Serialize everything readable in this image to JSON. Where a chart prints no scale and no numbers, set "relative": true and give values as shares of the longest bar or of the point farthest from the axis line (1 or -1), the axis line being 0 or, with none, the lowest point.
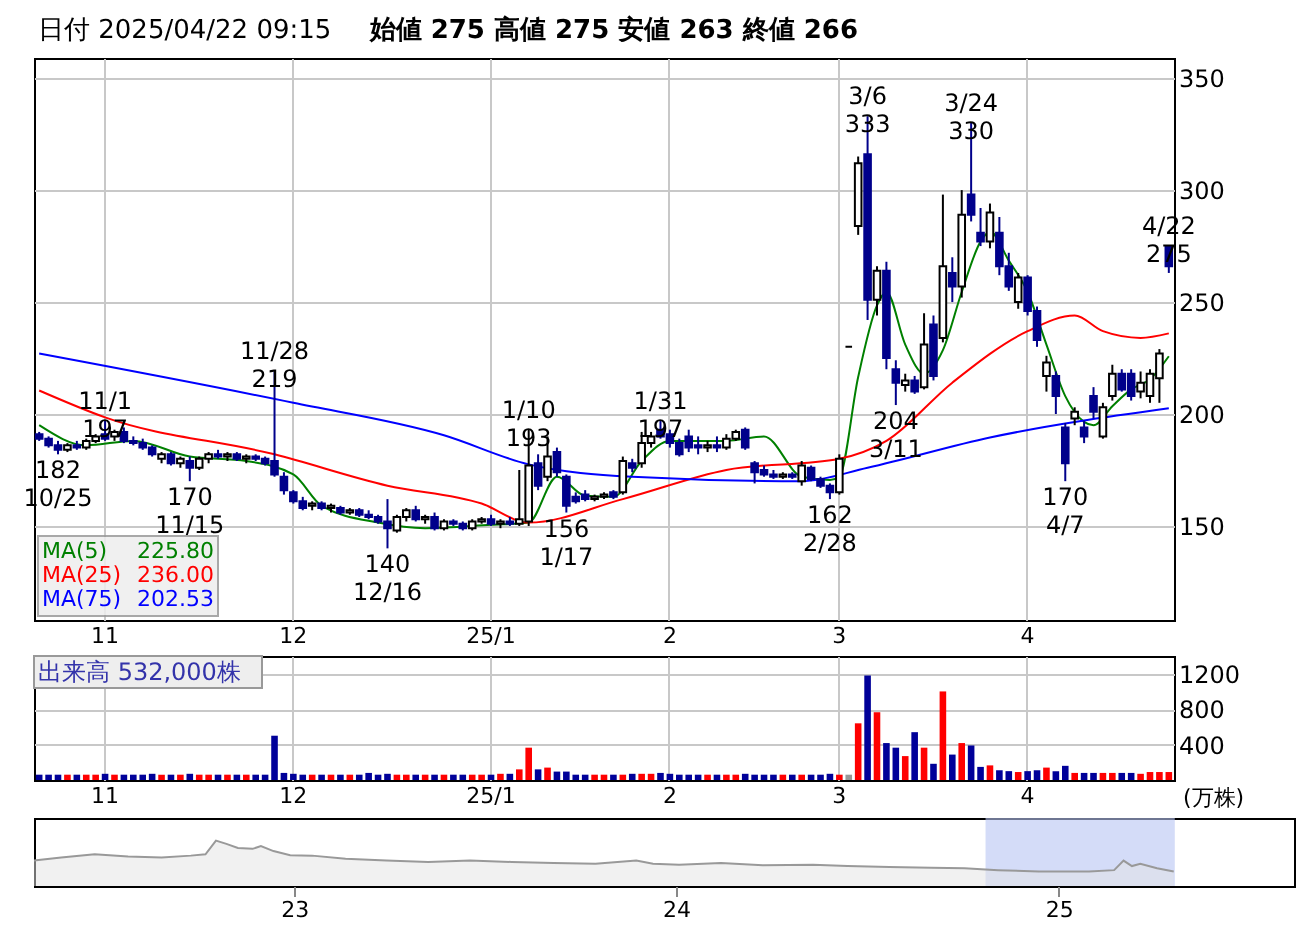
{
  "chart_data": [
    {
      "type": "candlestick",
      "title": "日付 2025/04/22 09:15",
      "subtitle": "始値 275  高値 275  安値 263  終値 266",
      "categories": [
        null,
        null,
        null,
        null,
        null,
        null,
        null,
        "11",
        null,
        null,
        null,
        null,
        null,
        null,
        null,
        null,
        null,
        null,
        null,
        null,
        null,
        null,
        null,
        null,
        null,
        null,
        null,
        "12",
        null,
        null,
        null,
        null,
        null,
        null,
        null,
        null,
        null,
        null,
        null,
        null,
        null,
        null,
        null,
        null,
        null,
        null,
        null,
        null,
        "25/1",
        null,
        null,
        null,
        null,
        null,
        null,
        null,
        null,
        null,
        null,
        null,
        null,
        null,
        null,
        null,
        null,
        null,
        null,
        "2",
        null,
        null,
        null,
        null,
        null,
        null,
        null,
        null,
        null,
        null,
        null,
        null,
        null,
        null,
        null,
        null,
        null,
        "3",
        null,
        null,
        null,
        null,
        null,
        null,
        null,
        null,
        null,
        null,
        null,
        null,
        null,
        null,
        null,
        null,
        null,
        null,
        null,
        "4",
        null,
        null,
        null,
        null,
        null,
        null,
        null,
        null,
        null,
        null,
        null,
        null,
        null,
        null,
        null
      ],
      "ohlc": [
        [
          191,
          192,
          188,
          189
        ],
        [
          189,
          190,
          185,
          186
        ],
        [
          186,
          188,
          182,
          184
        ],
        [
          184,
          187,
          183,
          186
        ],
        [
          186,
          188,
          184,
          185
        ],
        [
          185,
          189,
          184,
          188
        ],
        [
          188,
          191,
          187,
          190
        ],
        [
          191,
          197,
          188,
          189
        ],
        [
          190,
          193,
          188,
          192
        ],
        [
          192,
          194,
          187,
          188
        ],
        [
          188,
          190,
          186,
          187
        ],
        [
          187,
          189,
          184,
          185
        ],
        [
          185,
          186,
          181,
          182
        ],
        [
          180,
          183,
          178,
          182
        ],
        [
          182,
          183,
          177,
          178
        ],
        [
          178,
          181,
          176,
          180
        ],
        [
          179,
          181,
          170,
          176
        ],
        [
          176,
          181,
          175,
          180
        ],
        [
          180,
          183,
          178,
          182
        ],
        [
          182,
          184,
          180,
          181
        ],
        [
          181,
          183,
          179,
          182
        ],
        [
          182,
          183,
          179,
          180
        ],
        [
          180,
          182,
          178,
          181
        ],
        [
          181,
          182,
          179,
          180
        ],
        [
          180,
          181,
          177,
          178
        ],
        [
          179,
          219,
          172,
          173
        ],
        [
          172,
          174,
          164,
          166
        ],
        [
          165,
          166,
          160,
          161
        ],
        [
          161,
          163,
          157,
          158
        ],
        [
          159,
          161,
          157,
          160
        ],
        [
          160,
          161,
          157,
          158
        ],
        [
          158,
          160,
          156,
          159
        ],
        [
          158,
          159,
          155,
          156
        ],
        [
          156,
          158,
          155,
          157
        ],
        [
          157,
          158,
          154,
          155
        ],
        [
          155,
          157,
          153,
          154
        ],
        [
          154,
          155,
          151,
          152
        ],
        [
          152,
          162,
          140,
          149
        ],
        [
          148,
          155,
          147,
          154
        ],
        [
          154,
          158,
          152,
          157
        ],
        [
          157,
          159,
          152,
          153
        ],
        [
          153,
          155,
          151,
          154
        ],
        [
          154,
          156,
          148,
          149
        ],
        [
          149,
          153,
          148,
          152
        ],
        [
          152,
          153,
          150,
          151
        ],
        [
          151,
          152,
          148,
          149
        ],
        [
          149,
          153,
          148,
          152
        ],
        [
          152,
          154,
          151,
          153
        ],
        [
          153,
          155,
          150,
          151
        ],
        [
          151,
          153,
          149,
          152
        ],
        [
          152,
          154,
          150,
          151
        ],
        [
          151,
          175,
          150,
          153
        ],
        [
          152,
          193,
          150,
          177
        ],
        [
          178,
          182,
          166,
          168
        ],
        [
          172,
          190,
          170,
          181
        ],
        [
          183,
          185,
          172,
          174
        ],
        [
          172,
          173,
          156,
          159
        ],
        [
          163,
          165,
          160,
          161
        ],
        [
          164,
          166,
          161,
          162
        ],
        [
          162,
          164,
          161,
          163
        ],
        [
          163,
          165,
          162,
          164
        ],
        [
          165,
          166,
          162,
          163
        ],
        [
          165,
          181,
          164,
          179
        ],
        [
          178,
          180,
          174,
          176
        ],
        [
          178,
          192,
          176,
          187
        ],
        [
          187,
          192,
          185,
          190
        ],
        [
          193,
          197,
          189,
          190
        ],
        [
          191,
          193,
          185,
          187
        ],
        [
          187,
          189,
          181,
          182
        ],
        [
          190,
          193,
          183,
          185
        ],
        [
          186,
          190,
          182,
          185
        ],
        [
          185,
          188,
          183,
          186
        ],
        [
          186,
          190,
          183,
          185
        ],
        [
          185,
          191,
          184,
          189
        ],
        [
          189,
          193,
          188,
          192
        ],
        [
          193,
          194,
          184,
          185
        ],
        [
          178,
          179,
          169,
          174
        ],
        [
          175,
          177,
          172,
          173
        ],
        [
          173,
          175,
          171,
          172
        ],
        [
          172,
          174,
          171,
          173
        ],
        [
          173,
          174,
          171,
          172
        ],
        [
          170,
          179,
          168,
          177
        ],
        [
          176,
          177,
          170,
          171
        ],
        [
          171,
          172,
          167,
          168
        ],
        [
          168,
          169,
          162,
          165
        ],
        [
          165,
          182,
          164,
          180
        ],
        [
          230,
          230,
          230,
          230
        ],
        [
          284,
          315,
          280,
          312
        ],
        [
          316,
          333,
          242,
          251
        ],
        [
          251,
          266,
          244,
          264
        ],
        [
          264,
          268,
          220,
          225
        ],
        [
          220,
          224,
          204,
          214
        ],
        [
          213,
          218,
          210,
          215
        ],
        [
          215,
          217,
          209,
          210
        ],
        [
          212,
          245,
          211,
          231
        ],
        [
          240,
          244,
          215,
          217
        ],
        [
          234,
          298,
          232,
          266
        ],
        [
          263,
          270,
          250,
          257
        ],
        [
          257,
          300,
          252,
          289
        ],
        [
          298,
          330,
          286,
          289
        ],
        [
          281,
          292,
          275,
          277
        ],
        [
          277,
          294,
          274,
          290
        ],
        [
          281,
          288,
          262,
          266
        ],
        [
          266,
          272,
          255,
          257
        ],
        [
          250,
          263,
          247,
          261
        ],
        [
          261,
          262,
          244,
          246
        ],
        [
          246,
          248,
          230,
          233
        ],
        [
          217,
          226,
          210,
          223
        ],
        [
          217,
          219,
          200,
          208
        ],
        [
          194,
          196,
          170,
          178
        ],
        [
          198,
          203,
          195,
          201
        ],
        [
          194,
          197,
          187,
          190
        ],
        [
          208,
          212,
          198,
          201
        ],
        [
          190,
          205,
          189,
          203
        ],
        [
          208,
          222,
          206,
          218
        ],
        [
          218,
          220,
          210,
          211
        ],
        [
          218,
          220,
          206,
          208
        ],
        [
          210,
          219,
          207,
          214
        ],
        [
          208,
          220,
          205,
          218
        ],
        [
          216,
          229,
          205,
          227
        ],
        [
          275,
          275,
          263,
          266
        ]
      ],
      "series": [
        {
          "type": "line",
          "name": "MA(5)",
          "color": "#008000",
          "values": [
            195,
            null,
            null,
            null,
            null,
            186,
            null,
            null,
            null,
            null,
            188,
            null,
            null,
            null,
            null,
            null,
            181,
            null,
            null,
            null,
            null,
            null,
            179,
            null,
            null,
            null,
            null,
            173,
            null,
            null,
            159,
            null,
            null,
            null,
            null,
            null,
            151.5,
            null,
            null,
            null,
            null,
            149,
            null,
            null,
            null,
            null,
            null,
            null,
            150.5,
            null,
            null,
            null,
            151.5,
            null,
            null,
            172,
            null,
            null,
            163.5,
            null,
            null,
            163,
            null,
            null,
            179,
            null,
            null,
            188,
            null,
            null,
            null,
            null,
            null,
            188,
            null,
            null,
            null,
            190,
            null,
            null,
            null,
            172,
            null,
            null,
            170.5,
            172,
            null,
            216.5,
            null,
            248.5,
            254.5,
            null,
            231,
            null,
            218,
            null,
            228.5,
            null,
            254.5,
            null,
            277,
            281.5,
            null,
            268.5,
            null,
            254.5,
            null,
            231,
            null,
            208,
            null,
            196.5,
            195,
            null,
            203.5,
            null,
            211,
            null,
            215.5,
            null,
            225.8
          ]
        },
        {
          "type": "line",
          "name": "MA(25)",
          "color": "#ff0000",
          "values": [
            210.5,
            null,
            null,
            null,
            null,
            null,
            null,
            198.5,
            null,
            null,
            null,
            null,
            null,
            null,
            null,
            null,
            null,
            null,
            null,
            null,
            null,
            null,
            null,
            null,
            null,
            182,
            null,
            null,
            null,
            null,
            null,
            null,
            null,
            null,
            null,
            null,
            null,
            168,
            null,
            null,
            null,
            null,
            null,
            null,
            null,
            null,
            null,
            160,
            null,
            null,
            null,
            null,
            151.5,
            null,
            null,
            null,
            null,
            null,
            null,
            null,
            null,
            null,
            162,
            null,
            null,
            null,
            null,
            null,
            null,
            null,
            null,
            null,
            null,
            175,
            null,
            null,
            null,
            null,
            null,
            null,
            null,
            null,
            null,
            null,
            null,
            180,
            null,
            null,
            null,
            null,
            188,
            null,
            null,
            null,
            null,
            null,
            null,
            214,
            null,
            null,
            null,
            null,
            null,
            null,
            null,
            237,
            null,
            null,
            null,
            null,
            244,
            null,
            null,
            237,
            null,
            null,
            null,
            234,
            null,
            null,
            236
          ]
        },
        {
          "type": "line",
          "name": "MA(75)",
          "color": "#0000ff",
          "values": [
            227,
            null,
            null,
            null,
            null,
            null,
            null,
            null,
            null,
            null,
            null,
            null,
            null,
            null,
            null,
            null,
            null,
            null,
            null,
            null,
            null,
            null,
            null,
            null,
            null,
            null,
            null,
            205,
            null,
            null,
            null,
            null,
            null,
            null,
            null,
            null,
            null,
            null,
            null,
            null,
            null,
            null,
            null,
            190.5,
            null,
            null,
            null,
            null,
            null,
            null,
            null,
            null,
            177.5,
            null,
            null,
            null,
            null,
            null,
            null,
            null,
            null,
            null,
            null,
            172,
            null,
            null,
            null,
            null,
            null,
            null,
            null,
            null,
            null,
            null,
            null,
            null,
            null,
            null,
            null,
            null,
            null,
            170,
            null,
            null,
            null,
            null,
            null,
            null,
            176,
            null,
            null,
            null,
            null,
            null,
            null,
            null,
            null,
            null,
            null,
            null,
            null,
            189.5,
            null,
            null,
            null,
            null,
            null,
            null,
            null,
            null,
            null,
            null,
            null,
            null,
            null,
            null,
            null,
            null,
            null,
            null,
            202.53
          ]
        }
      ],
      "annotations": [
        {
          "text": "182\n10/25",
          "y": 182
        },
        {
          "text": "11/1\n197",
          "y": 197
        },
        {
          "text": "170\n11/15",
          "y": 170
        },
        {
          "text": "11/28\n219",
          "y": 219
        },
        {
          "text": "140\n12/16",
          "y": 140
        },
        {
          "text": "1/10\n193",
          "y": 193
        },
        {
          "text": "156\n1/17",
          "y": 156
        },
        {
          "text": "1/31\n197",
          "y": 197
        },
        {
          "text": "162\n2/28",
          "y": 162
        },
        {
          "text": "3/6\n333",
          "y": 333
        },
        {
          "text": "204\n3/11",
          "y": 204
        },
        {
          "text": "3/24\n330",
          "y": 330
        },
        {
          "text": "170\n4/7",
          "y": 170
        },
        {
          "text": "4/22\n275",
          "y": 275
        },
        "225.80",
        "236.00",
        "202.53"
      ],
      "ylim": [
        108,
        359
      ],
      "yticks": [
        150,
        200,
        250,
        300,
        350
      ],
      "grid": true,
      "legend": "bottom left"
    },
    {
      "type": "bar",
      "title": "出来高 532,000株",
      "ylabel": "(万株)",
      "categories": [
        null,
        null,
        null,
        null,
        null,
        null,
        null,
        "11",
        null,
        null,
        null,
        null,
        null,
        null,
        null,
        null,
        null,
        null,
        null,
        null,
        null,
        null,
        null,
        null,
        null,
        null,
        null,
        "12",
        null,
        null,
        null,
        null,
        null,
        null,
        null,
        null,
        null,
        null,
        null,
        null,
        null,
        null,
        null,
        null,
        null,
        null,
        null,
        null,
        "25/1",
        null,
        null,
        null,
        null,
        null,
        null,
        null,
        null,
        null,
        null,
        null,
        null,
        null,
        null,
        null,
        null,
        null,
        null,
        "2",
        null,
        null,
        null,
        null,
        null,
        null,
        null,
        null,
        null,
        null,
        null,
        null,
        null,
        null,
        null,
        null,
        null,
        "3",
        null,
        null,
        null,
        null,
        null,
        null,
        null,
        null,
        null,
        null,
        null,
        null,
        null,
        null,
        null,
        null,
        null,
        null,
        null,
        "4",
        null,
        null,
        null,
        null,
        null,
        null,
        null,
        null,
        null,
        null,
        null,
        null,
        null,
        null,
        null
      ],
      "values": [
        60,
        60,
        60,
        60,
        60,
        60,
        60,
        70,
        60,
        60,
        60,
        60,
        70,
        60,
        60,
        60,
        70,
        60,
        60,
        60,
        60,
        60,
        60,
        60,
        60,
        500,
        80,
        70,
        60,
        60,
        60,
        60,
        60,
        60,
        60,
        80,
        60,
        70,
        60,
        60,
        60,
        60,
        60,
        60,
        60,
        60,
        60,
        60,
        60,
        70,
        70,
        120,
        365,
        120,
        140,
        95,
        95,
        60,
        60,
        60,
        60,
        60,
        60,
        70,
        70,
        70,
        80,
        70,
        60,
        60,
        60,
        60,
        60,
        60,
        60,
        70,
        60,
        60,
        60,
        60,
        60,
        60,
        60,
        60,
        70,
        60,
        60,
        640,
        1180,
        765,
        417,
        365,
        270,
        540,
        365,
        183,
        1000,
        287,
        417,
        390,
        148,
        165,
        110,
        100,
        90,
        100,
        110,
        140,
        100,
        160,
        80,
        80,
        80,
        80,
        80,
        80,
        80,
        70,
        90,
        90,
        90
      ],
      "colors": [
        "#000099",
        "#000099",
        "#000099",
        "#ff0000",
        "#000099",
        "#ff0000",
        "#ff0000",
        "#000099",
        "#ff0000",
        "#000099",
        "#000099",
        "#000099",
        "#000099",
        "#ff0000",
        "#000099",
        "#ff0000",
        "#000099",
        "#ff0000",
        "#ff0000",
        "#000099",
        "#ff0000",
        "#000099",
        "#ff0000",
        "#000099",
        "#000099",
        "#000099",
        "#000099",
        "#000099",
        "#000099",
        "#ff0000",
        "#000099",
        "#ff0000",
        "#000099",
        "#ff0000",
        "#000099",
        "#000099",
        "#000099",
        "#000099",
        "#ff0000",
        "#ff0000",
        "#000099",
        "#ff0000",
        "#000099",
        "#ff0000",
        "#000099",
        "#000099",
        "#ff0000",
        "#ff0000",
        "#000099",
        "#ff0000",
        "#000099",
        "#ff0000",
        "#ff0000",
        "#000099",
        "#ff0000",
        "#000099",
        "#000099",
        "#000099",
        "#000099",
        "#ff0000",
        "#ff0000",
        "#000099",
        "#ff0000",
        "#000099",
        "#ff0000",
        "#ff0000",
        "#000099",
        "#000099",
        "#000099",
        "#000099",
        "#000099",
        "#ff0000",
        "#000099",
        "#ff0000",
        "#ff0000",
        "#000099",
        "#000099",
        "#000099",
        "#000099",
        "#ff0000",
        "#000099",
        "#ff0000",
        "#000099",
        "#000099",
        "#000099",
        "#ff0000",
        "#999999",
        "#ff0000",
        "#000099",
        "#ff0000",
        "#000099",
        "#000099",
        "#ff0000",
        "#000099",
        "#ff0000",
        "#000099",
        "#ff0000",
        "#000099",
        "#ff0000",
        "#000099",
        "#000099",
        "#ff0000",
        "#000099",
        "#000099",
        "#ff0000",
        "#000099",
        "#000099",
        "#ff0000",
        "#000099",
        "#000099",
        "#ff0000",
        "#000099",
        "#000099",
        "#ff0000",
        "#ff0000",
        "#000099",
        "#000099",
        "#ff0000",
        "#ff0000",
        "#ff0000",
        "#ff0000"
      ],
      "ylim": [
        0,
        1400
      ],
      "yticks": [
        400,
        800,
        1200
      ],
      "grid": true
    },
    {
      "type": "area",
      "relative": true,
      "color": "#999999",
      "x": [
        "2022-04-27",
        "2022-05-23",
        "2022-06-24",
        "2022-07-26",
        "2022-08-27",
        "2022-09-24",
        "2022-10-08",
        "2022-10-18",
        "2022-10-28",
        "2022-11-08",
        "2022-11-22",
        "2022-11-30",
        "2022-12-12",
        "2022-12-28",
        "2023-01-18",
        "2023-02-19",
        "2023-03-30",
        "2023-05-09",
        "2023-06-18",
        "2023-07-28",
        "2023-09-06",
        "2023-10-16",
        "2023-11-24",
        "2023-12-10",
        "2024-01-04",
        "2024-02-13",
        "2024-03-24",
        "2024-05-11",
        "2024-06-13",
        "2024-07-23",
        "2024-09-01",
        "2024-10-03",
        "2024-11-04",
        "2024-12-13",
        "2025-01-30",
        "2025-02-23",
        "2025-03-04",
        "2025-03-12",
        "2025-03-20",
        "2025-04-05",
        "2025-04-21"
      ],
      "values": [
        0.56,
        0.63,
        0.7,
        0.65,
        0.63,
        0.67,
        0.7,
        1.0,
        0.93,
        0.84,
        0.82,
        0.88,
        0.77,
        0.68,
        0.67,
        0.6,
        0.56,
        0.53,
        0.56,
        0.53,
        0.51,
        0.49,
        0.56,
        0.49,
        0.47,
        0.51,
        0.46,
        0.47,
        0.44,
        0.42,
        0.4,
        0.39,
        0.35,
        0.32,
        0.32,
        0.35,
        0.56,
        0.44,
        0.49,
        0.39,
        0.32
      ],
      "xlim": [
        "2022-04-27",
        "2025-08-14"
      ],
      "xticks": [
        {
          "value": "2023-01-01",
          "label": "23"
        },
        {
          "value": "2024-01-01",
          "label": "24"
        },
        {
          "value": "2025-01-01",
          "label": "25"
        }
      ],
      "bands": [
        {
          "axis": "x",
          "from": "2024-10-23",
          "to": "2025-04-22",
          "color": "#b8c4f4"
        }
      ]
    }
  ]
}
